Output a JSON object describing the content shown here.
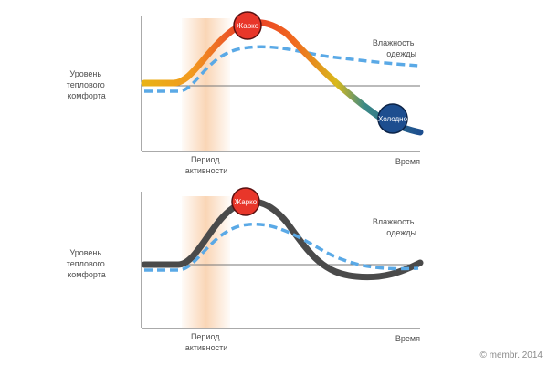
{
  "charts": [
    {
      "y_label": [
        "Уровень",
        "теплового",
        "комфорта"
      ],
      "x_label": "Время",
      "period_label": [
        "Период",
        "активности"
      ],
      "humidity_label": [
        "Влажность",
        "одежды"
      ],
      "hot_label": "Жарко",
      "cold_label": "Холодно",
      "temperature_line": "gradient"
    },
    {
      "y_label": [
        "Уровень",
        "теплового",
        "комфорта"
      ],
      "x_label": "Время",
      "period_label": [
        "Период",
        "активности"
      ],
      "humidity_label": [
        "Влажность",
        "одежды"
      ],
      "hot_label": "Жарко",
      "temperature_line": "dark"
    }
  ],
  "copyright": "© membr. 2014",
  "colors": {
    "axis": "#555555",
    "comfort_line": "#777777",
    "humidity_curve": "#5aa9e6",
    "activity_band": "#f6b47a",
    "hot": "#e8362a",
    "cold": "#1d4e8f",
    "warm_yellow": "#e8b317",
    "dark_curve": "#4a4a4a"
  }
}
